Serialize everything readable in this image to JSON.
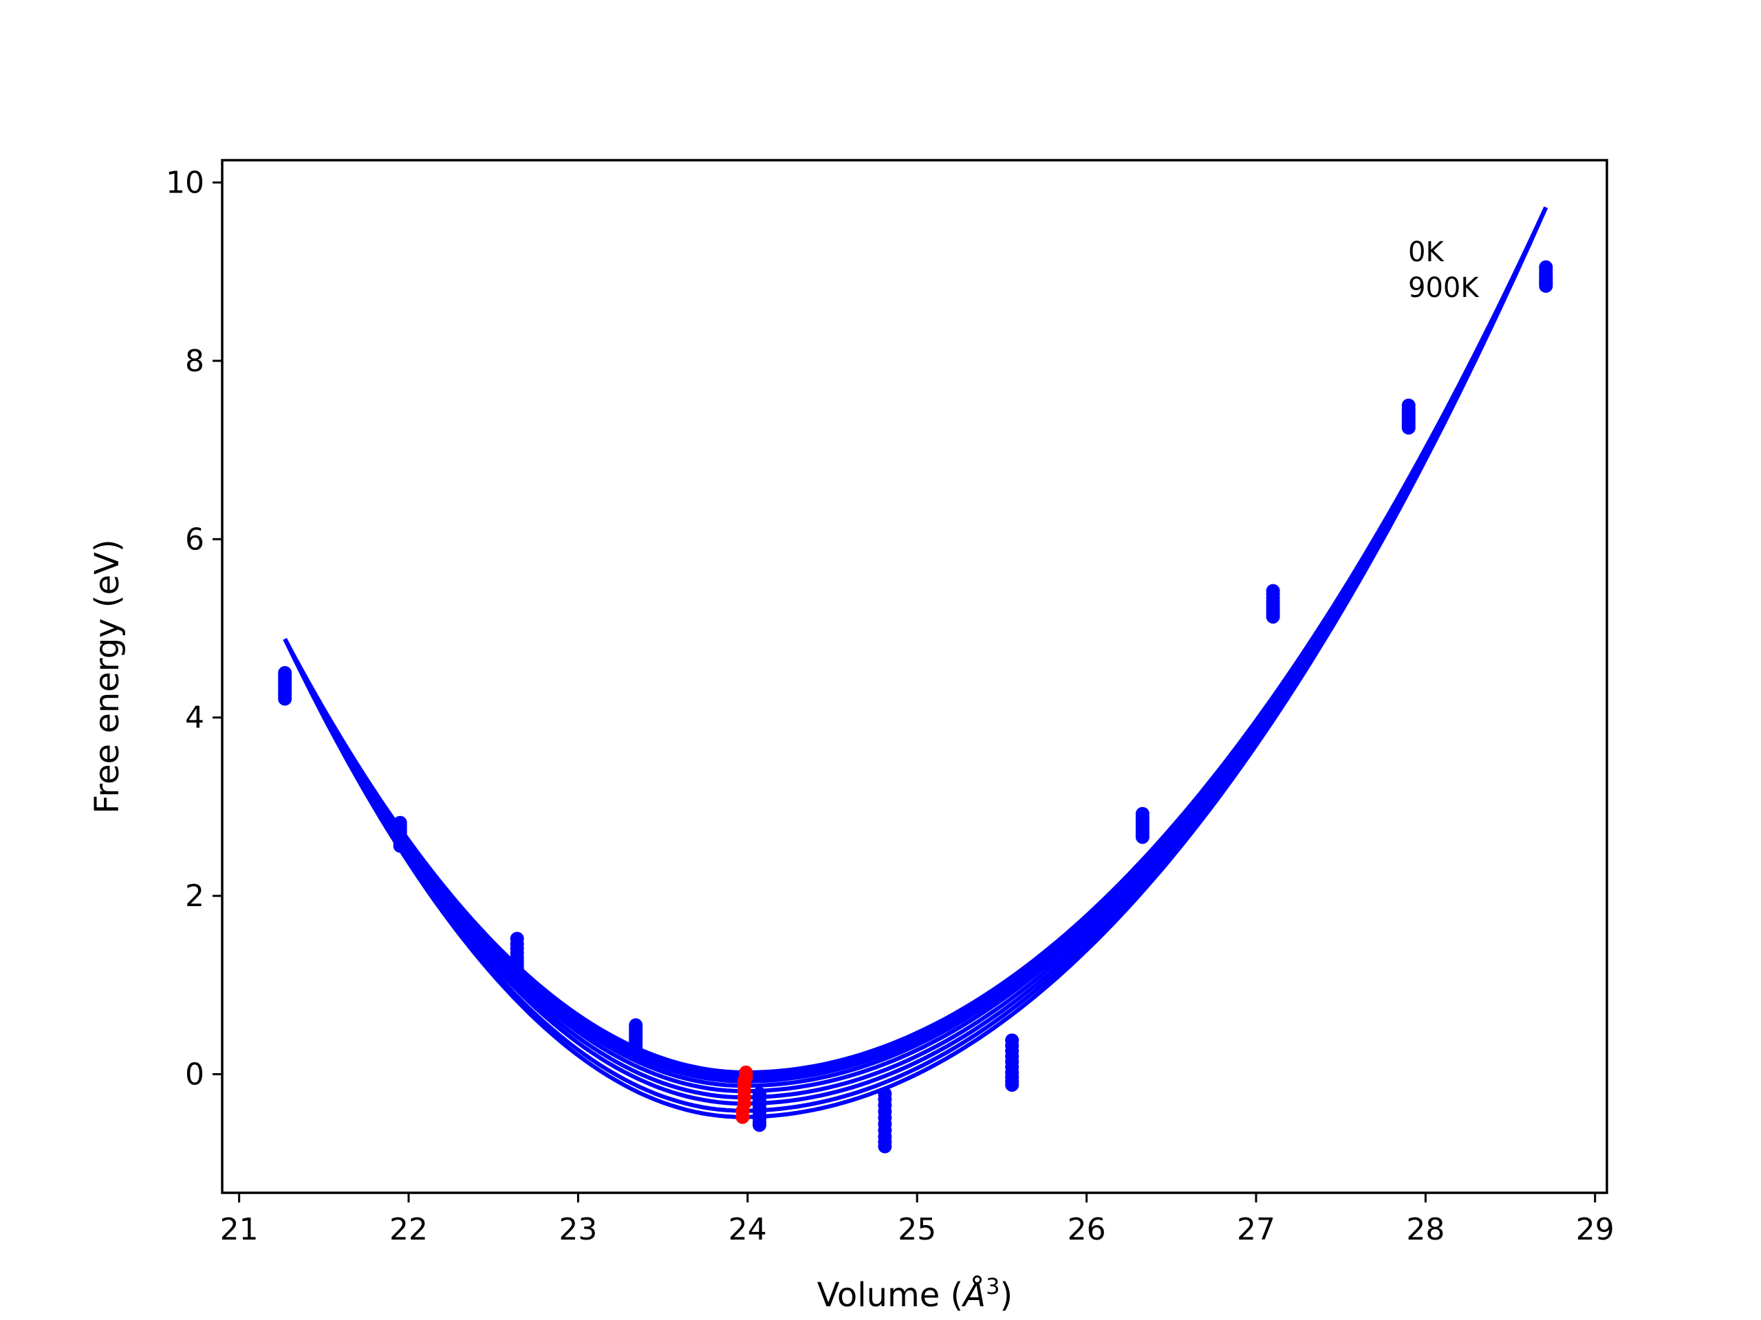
{
  "chart_data": {
    "type": "scatter",
    "title": "",
    "xlabel": "Volume (",
    "xlabel_unit": "Å",
    "xlabel_exp": "3",
    "xlabel_close": ")",
    "ylabel": "Free energy (eV)",
    "xlim": [
      20.9,
      29.07
    ],
    "ylim": [
      -1.33,
      10.25
    ],
    "xticks": [
      21,
      22,
      23,
      24,
      25,
      26,
      27,
      28,
      29
    ],
    "yticks": [
      0,
      2,
      4,
      6,
      8,
      10
    ],
    "grid": false,
    "annotations": [
      "0K",
      "900K"
    ],
    "colors": {
      "curves": "#0000ff",
      "points": "#0000ff",
      "minima": "#ff0000"
    },
    "curves": {
      "x_range": [
        21.27,
        28.71
      ],
      "temperatures_K": [
        0,
        100,
        200,
        300,
        400,
        500,
        600,
        700,
        800,
        900
      ],
      "min_volume": [
        23.99,
        23.99,
        23.99,
        23.98,
        23.98,
        23.98,
        23.98,
        23.98,
        23.97,
        23.97
      ],
      "min_energy": [
        0.02,
        0.0,
        -0.04,
        -0.08,
        -0.13,
        -0.19,
        -0.26,
        -0.33,
        -0.41,
        -0.48
      ]
    },
    "points": [
      {
        "x": 21.27,
        "y": [
          4.5,
          4.47,
          4.44,
          4.41,
          4.38,
          4.35,
          4.31,
          4.28,
          4.25,
          4.21
        ]
      },
      {
        "x": 21.95,
        "y": [
          2.82,
          2.79,
          2.76,
          2.74,
          2.71,
          2.68,
          2.65,
          2.62,
          2.59,
          2.56
        ]
      },
      {
        "x": 22.64,
        "y": [
          1.52,
          1.46,
          1.41,
          1.36,
          1.31,
          1.27,
          1.23,
          1.19,
          1.15,
          1.11
        ]
      },
      {
        "x": 23.34,
        "y": [
          0.55,
          0.52,
          0.49,
          0.46,
          0.43,
          0.4,
          0.37,
          0.34,
          0.31,
          0.28
        ]
      },
      {
        "x": 24.07,
        "y": [
          -0.22,
          -0.26,
          -0.3,
          -0.34,
          -0.38,
          -0.42,
          -0.46,
          -0.5,
          -0.54,
          -0.57
        ]
      },
      {
        "x": 24.81,
        "y": [
          -0.22,
          -0.28,
          -0.35,
          -0.42,
          -0.49,
          -0.56,
          -0.63,
          -0.7,
          -0.76,
          -0.81
        ]
      },
      {
        "x": 25.56,
        "y": [
          0.38,
          0.32,
          0.26,
          0.2,
          0.14,
          0.08,
          0.02,
          -0.03,
          -0.08,
          -0.12
        ]
      },
      {
        "x": 26.33,
        "y": [
          2.92,
          2.88,
          2.85,
          2.82,
          2.79,
          2.76,
          2.73,
          2.7,
          2.68,
          2.66
        ]
      },
      {
        "x": 27.1,
        "y": [
          5.42,
          5.38,
          5.34,
          5.3,
          5.27,
          5.24,
          5.21,
          5.18,
          5.15,
          5.13
        ]
      },
      {
        "x": 27.9,
        "y": [
          7.5,
          7.46,
          7.43,
          7.4,
          7.37,
          7.34,
          7.31,
          7.29,
          7.27,
          7.25
        ]
      },
      {
        "x": 28.71,
        "y": [
          9.05,
          9.02,
          8.99,
          8.96,
          8.94,
          8.92,
          8.9,
          8.88,
          8.86,
          8.84
        ]
      }
    ]
  }
}
